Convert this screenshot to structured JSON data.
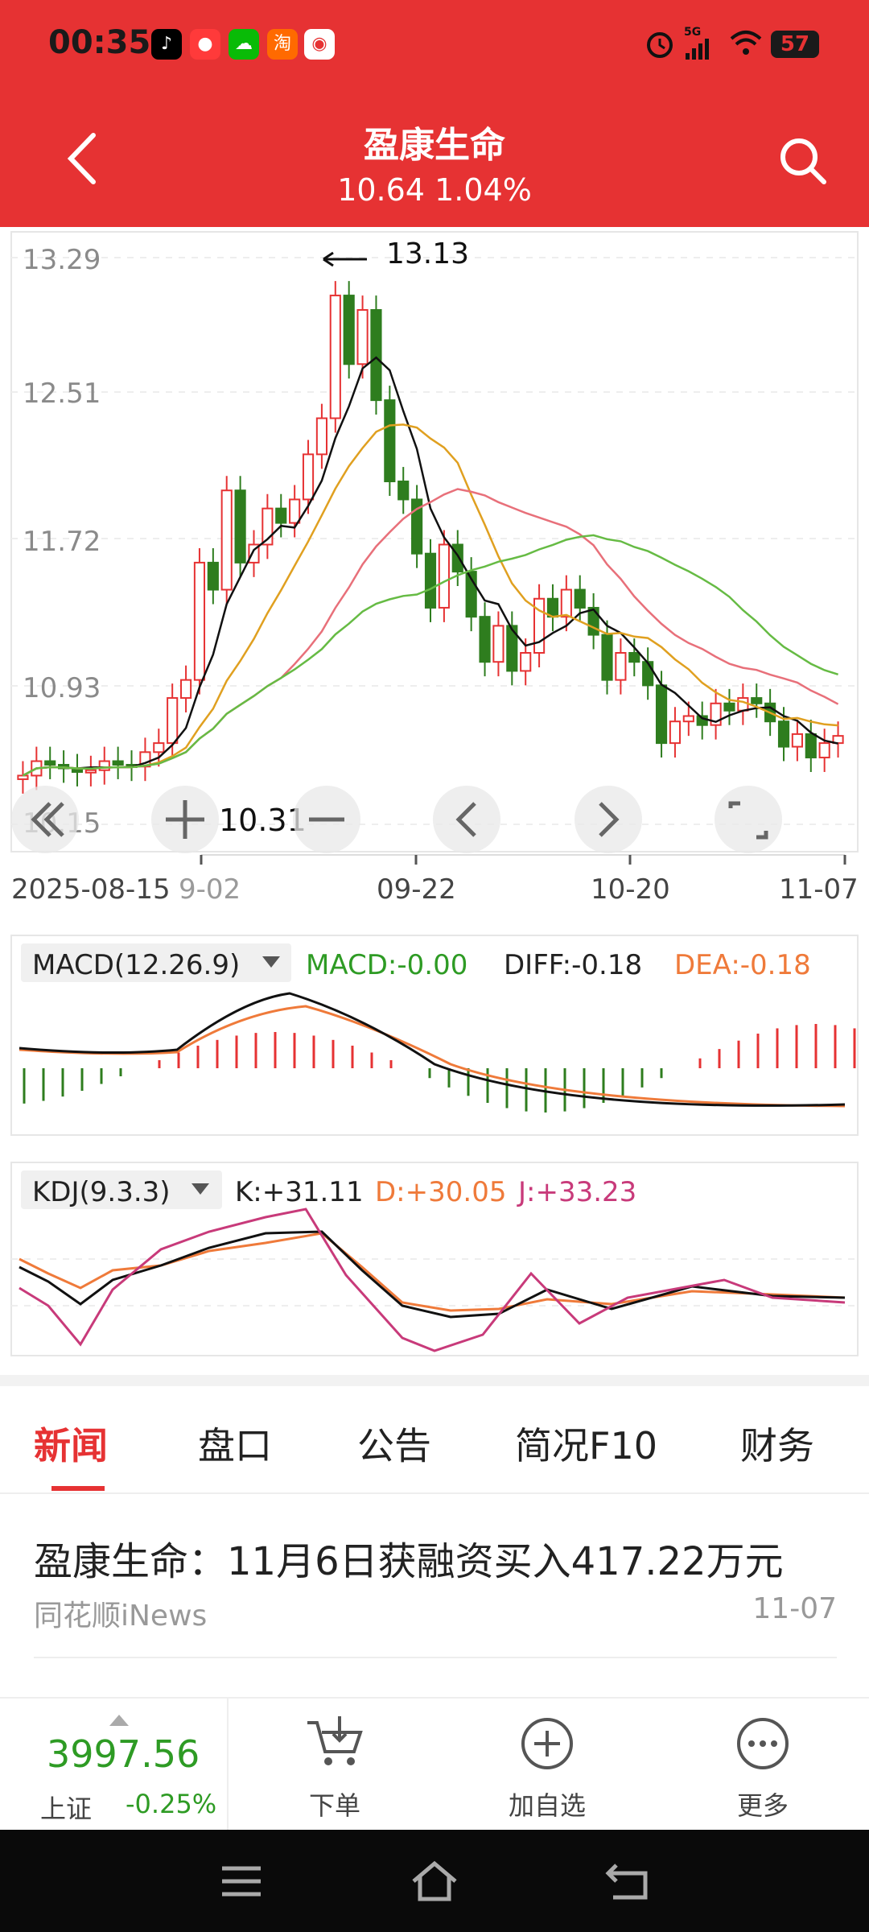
{
  "status_bar": {
    "time": "00:35",
    "signal_label": "5G",
    "battery": "57",
    "apps": [
      "tiktok-icon",
      "tmall-icon",
      "wechat-icon",
      "taobao-icon",
      "weather-icon"
    ],
    "colors": {
      "bg": "#e63233"
    }
  },
  "header": {
    "title": "盈康生命",
    "price": "10.64",
    "change": "1.04%",
    "back_icon": "back-arrow-icon",
    "search_icon": "search-icon"
  },
  "kline": {
    "y_labels": [
      "13.29",
      "12.51",
      "11.72",
      "10.93",
      "10.15"
    ],
    "x_labels": [
      "2025-08-15",
      "9-02",
      "09-22",
      "10-20",
      "11-07"
    ],
    "max_marker": "13.13",
    "min_marker": "10.31",
    "controls": [
      "double-left-icon",
      "zoom-in-icon",
      "zoom-out-icon",
      "prev-icon",
      "next-icon",
      "fullscreen-icon"
    ]
  },
  "macd": {
    "label": "MACD(12.26.9)",
    "macd": "MACD:-0.00",
    "diff": "DIFF:-0.18",
    "dea": "DEA:-0.18"
  },
  "kdj": {
    "label": "KDJ(9.3.3)",
    "k": "K:+31.11",
    "d": "D:+30.05",
    "j": "J:+33.23"
  },
  "tabs": [
    "新闻",
    "盘口",
    "公告",
    "简况F10",
    "财务"
  ],
  "active_tab": "新闻",
  "news": [
    {
      "title": "盈康生命：11月6日获融资买入417.22万元",
      "source": "同花顺iNews",
      "date": "11-07"
    }
  ],
  "bottom": {
    "index_value": "3997.56",
    "index_name": "上证",
    "index_change": "-0.25%",
    "actions": [
      {
        "label": "下单",
        "icon": "cart-icon"
      },
      {
        "label": "加自选",
        "icon": "plus-circle-icon"
      },
      {
        "label": "更多",
        "icon": "more-icon"
      }
    ]
  },
  "colors": {
    "up": "#e63233",
    "down": "#2e7d1e",
    "ma5": "#111111",
    "ma10": "#e0a020",
    "ma20": "#e8707a",
    "ma30": "#66bb44"
  }
}
